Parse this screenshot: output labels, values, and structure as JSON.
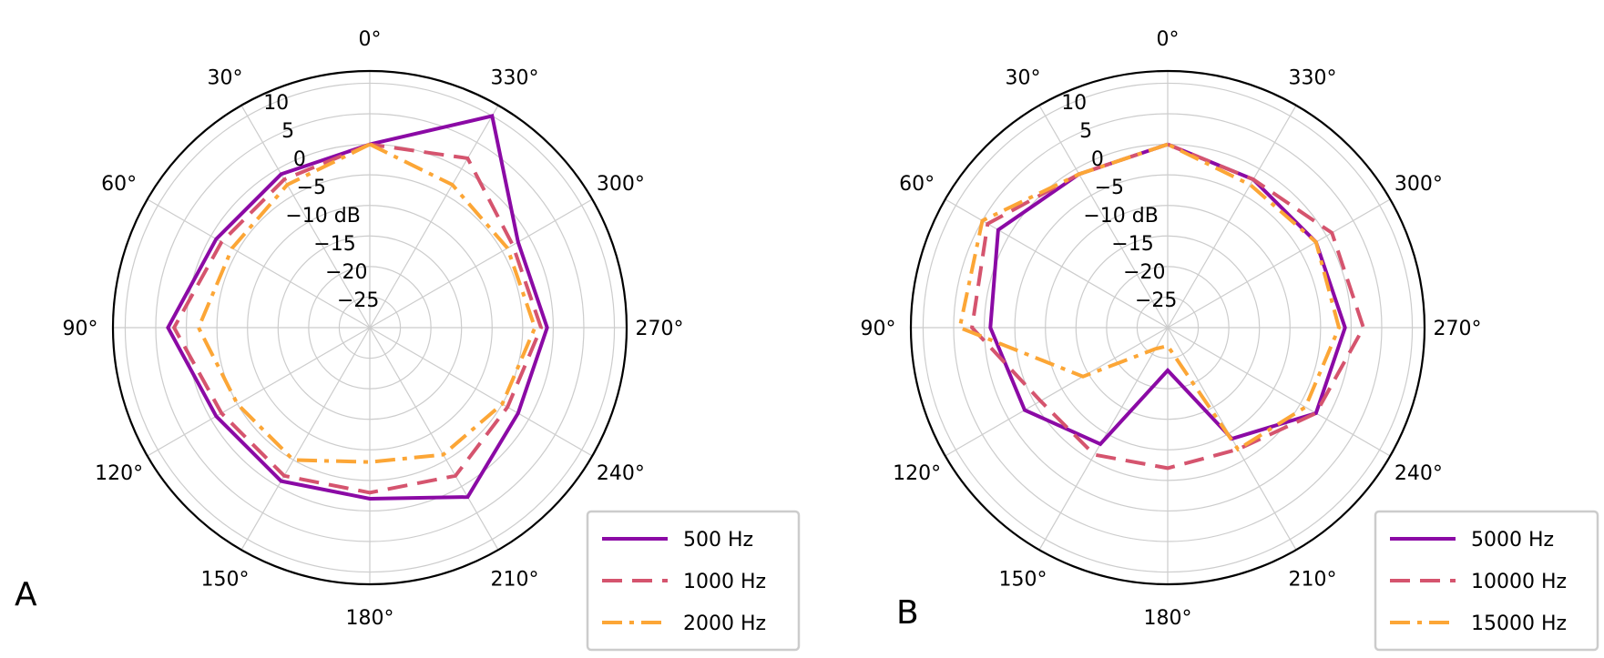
{
  "colors": {
    "grid": "#cccccc",
    "frame": "#000000",
    "legend_border": "#cccccc"
  },
  "chart_data": [
    {
      "type": "polar-line",
      "panel_label": "A",
      "angle_direction": "counterclockwise",
      "zero_location": "top",
      "angle_ticks": [
        "0°",
        "30°",
        "60°",
        "90°",
        "120°",
        "150°",
        "180°",
        "210°",
        "240°",
        "270°",
        "300°",
        "330°"
      ],
      "radial_ticks": [
        "−25",
        "−20",
        "−15",
        "−10 dB",
        "−5",
        "0",
        "5",
        "10"
      ],
      "rlim": [
        -30,
        12
      ],
      "legend_position": "lower-right",
      "angles_deg": [
        0,
        30,
        60,
        90,
        120,
        150,
        180,
        210,
        240,
        270,
        300,
        330
      ],
      "series": [
        {
          "name": "500 Hz",
          "color": "#8b0aa5",
          "style": "solid",
          "values": [
            0,
            -1,
            -1,
            3,
            -1,
            -1,
            -2,
            2,
            -2,
            -1,
            -2,
            10
          ]
        },
        {
          "name": "1000 Hz",
          "color": "#d5546e",
          "style": "dashed",
          "values": [
            0,
            -2,
            -2,
            2,
            -2,
            -2,
            -3,
            -2,
            -4,
            -2,
            -3,
            2
          ]
        },
        {
          "name": "2000 Hz",
          "color": "#fca636",
          "style": "dashdot",
          "values": [
            0,
            -3,
            -4,
            -2,
            -5,
            -5,
            -8,
            -6,
            -5,
            -3,
            -4,
            -3
          ]
        }
      ]
    },
    {
      "type": "polar-line",
      "panel_label": "B",
      "angle_direction": "counterclockwise",
      "zero_location": "top",
      "angle_ticks": [
        "0°",
        "30°",
        "60°",
        "90°",
        "120°",
        "150°",
        "180°",
        "210°",
        "240°",
        "270°",
        "300°",
        "330°"
      ],
      "radial_ticks": [
        "−25",
        "−20",
        "−15",
        "−10 dB",
        "−5",
        "0",
        "5",
        "10"
      ],
      "rlim": [
        -30,
        12
      ],
      "legend_position": "lower-right",
      "angles_deg": [
        0,
        30,
        60,
        90,
        120,
        150,
        180,
        210,
        240,
        270,
        300,
        330
      ],
      "series": [
        {
          "name": "5000 Hz",
          "color": "#8b0aa5",
          "style": "solid",
          "values": [
            0,
            -1,
            2,
            -1,
            -3,
            -8,
            -23,
            -9,
            -2,
            -1,
            -2,
            -2
          ]
        },
        {
          "name": "10000 Hz",
          "color": "#d5546e",
          "style": "dashed",
          "values": [
            0,
            -1,
            4,
            2,
            -6,
            -6,
            -7,
            -7,
            -2,
            2,
            1,
            -2
          ]
        },
        {
          "name": "15000 Hz",
          "color": "#fca636",
          "style": "dashdot",
          "values": [
            0,
            -1,
            5,
            4,
            -14,
            -26,
            -27,
            -7,
            -4,
            -2,
            -2,
            -3
          ]
        }
      ]
    }
  ]
}
